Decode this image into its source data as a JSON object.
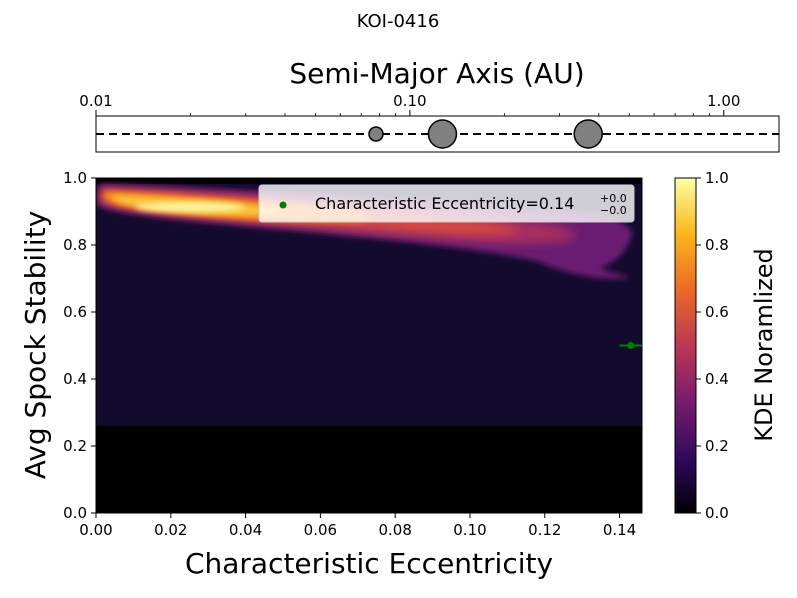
{
  "figure_title": "KOI-0416",
  "chart_data": [
    {
      "type": "scatter",
      "name": "semi-major-axis-panel",
      "xlabel": "Semi-Major Axis (AU)",
      "xscale": "log",
      "xlim": [
        0.01,
        1.5
      ],
      "xticks": [
        0.01,
        0.1,
        1.0
      ],
      "xtick_labels": [
        "0.01",
        "0.10",
        "1.00"
      ],
      "planets": [
        {
          "a": 0.078,
          "size": "small"
        },
        {
          "a": 0.127,
          "size": "large"
        },
        {
          "a": 0.37,
          "size": "large"
        }
      ],
      "planet_color": "#808080",
      "line_style": "dashed"
    },
    {
      "type": "heatmap",
      "name": "kde-panel",
      "xlabel": "Characteristic Eccentricity",
      "ylabel": "Avg Spock Stability",
      "xlim": [
        0.0,
        0.146
      ],
      "ylim": [
        0.0,
        1.0
      ],
      "xticks": [
        0.0,
        0.02,
        0.04,
        0.06,
        0.08,
        0.1,
        0.12,
        0.14
      ],
      "xtick_labels": [
        "0.00",
        "0.02",
        "0.04",
        "0.06",
        "0.08",
        "0.10",
        "0.12",
        "0.14"
      ],
      "yticks": [
        0.0,
        0.2,
        0.4,
        0.6,
        0.8,
        1.0
      ],
      "ytick_labels": [
        "0.0",
        "0.2",
        "0.4",
        "0.6",
        "0.8",
        "1.0"
      ],
      "data_floor_y": 0.26,
      "kde_peak": {
        "x": 0.025,
        "y": 0.915
      },
      "point": {
        "x": 0.143,
        "y": 0.5,
        "xerr": 0.003,
        "color": "#008000"
      },
      "legend": {
        "text": "Characteristic Eccentricity=0.14",
        "sup": "+0.0",
        "sub": "−0.0",
        "location": "upper-right"
      },
      "colorbar": {
        "label": "KDE Noramlized",
        "ticks": [
          0.0,
          0.2,
          0.4,
          0.6,
          0.8,
          1.0
        ],
        "tick_labels": [
          "0.0",
          "0.2",
          "0.4",
          "0.6",
          "0.8",
          "1.0"
        ],
        "colormap": "inferno",
        "stops": [
          "#000004",
          "#320a5e",
          "#781c6d",
          "#bc3754",
          "#ed6925",
          "#fbb61a",
          "#fcffa4"
        ]
      }
    }
  ]
}
